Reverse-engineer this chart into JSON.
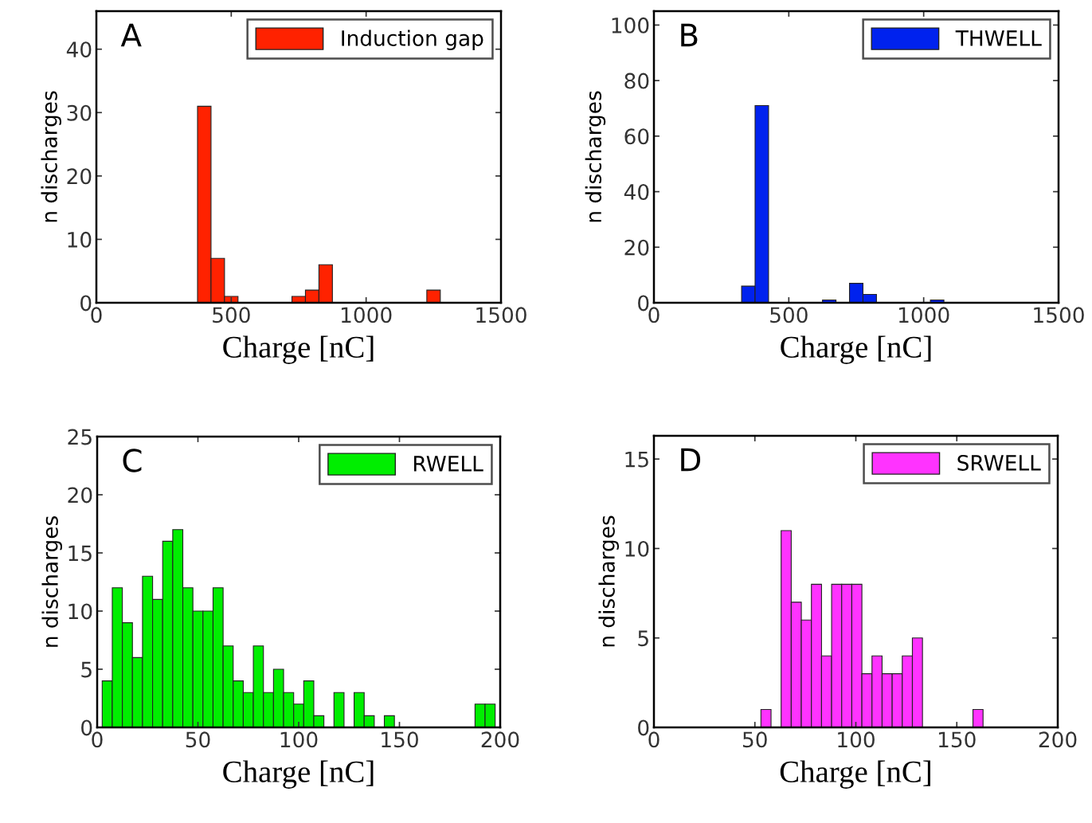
{
  "chart_data": [
    {
      "type": "histogram",
      "xlabel": "Charge [nC]",
      "ylabel": "n discharges",
      "annotations": [
        "A"
      ],
      "legend": "top right",
      "bins": [
        375,
        425,
        475,
        525,
        575,
        625,
        675,
        725,
        775,
        825,
        875,
        925,
        975,
        1025,
        1075,
        1125,
        1175,
        1225,
        1275
      ],
      "series": [
        {
          "name": "Induction gap",
          "color": "#ff2200",
          "values": [
            31,
            7,
            1,
            0,
            0,
            0,
            0,
            1,
            2,
            6,
            0,
            0,
            0,
            0,
            0,
            0,
            0,
            2
          ]
        }
      ],
      "xlim": [
        0,
        1500
      ],
      "xticks": [
        0,
        500,
        1000,
        1500
      ],
      "ylim": [
        0,
        46
      ],
      "yticks": [
        0,
        10,
        20,
        30,
        40
      ],
      "grid": false
    },
    {
      "type": "histogram",
      "xlabel": "Charge [nC]",
      "ylabel": "n discharges",
      "annotations": [
        "B"
      ],
      "legend": "top right",
      "bins": [
        325,
        375,
        425,
        475,
        525,
        575,
        625,
        675,
        725,
        775,
        825,
        875,
        925,
        975,
        1025,
        1075
      ],
      "series": [
        {
          "name": "THWELL",
          "color": "#0022ee",
          "values": [
            6,
            71,
            0,
            0,
            0,
            0,
            1,
            0,
            7,
            3,
            0,
            0,
            0,
            0,
            1
          ]
        }
      ],
      "xlim": [
        0,
        1500
      ],
      "xticks": [
        0,
        500,
        1000,
        1500
      ],
      "ylim": [
        0,
        105
      ],
      "yticks": [
        0,
        20,
        40,
        60,
        80,
        100
      ],
      "grid": false
    },
    {
      "type": "histogram",
      "xlabel": "Charge [nC]",
      "ylabel": "n discharges",
      "annotations": [
        "C"
      ],
      "legend": "top right",
      "bins": [
        2.5,
        7.5,
        12.5,
        17.5,
        22.5,
        27.5,
        32.5,
        37.5,
        42.5,
        47.5,
        52.5,
        57.5,
        62.5,
        67.5,
        72.5,
        77.5,
        82.5,
        87.5,
        92.5,
        97.5,
        102.5,
        107.5,
        112.5,
        117.5,
        122.5,
        127.5,
        132.5,
        137.5,
        142.5,
        147.5,
        152.5,
        157.5,
        162.5,
        167.5,
        172.5,
        177.5,
        182.5,
        187.5,
        192.5,
        197.5
      ],
      "series": [
        {
          "name": "RWELL",
          "color": "#00ee00",
          "values": [
            4,
            12,
            9,
            6,
            13,
            11,
            16,
            17,
            12,
            10,
            10,
            12,
            7,
            4,
            3,
            7,
            3,
            5,
            3,
            2,
            4,
            1,
            0,
            3,
            0,
            3,
            1,
            0,
            1,
            0,
            0,
            0,
            0,
            0,
            0,
            0,
            0,
            2,
            2
          ]
        }
      ],
      "xlim": [
        0,
        200
      ],
      "xticks": [
        0,
        50,
        100,
        150,
        200
      ],
      "ylim": [
        0,
        25
      ],
      "yticks": [
        0,
        5,
        10,
        15,
        20,
        25
      ],
      "grid": false
    },
    {
      "type": "histogram",
      "xlabel": "Charge [nC]",
      "ylabel": "n discharges",
      "annotations": [
        "D"
      ],
      "legend": "top right",
      "bins": [
        53,
        58,
        63,
        68,
        73,
        78,
        83,
        88,
        93,
        98,
        103,
        108,
        113,
        118,
        123,
        128,
        133,
        138,
        143,
        148,
        153,
        158,
        163
      ],
      "series": [
        {
          "name": "SRWELL",
          "color": "#ff33ff",
          "values": [
            1,
            0,
            11,
            7,
            6,
            8,
            4,
            8,
            8,
            8,
            3,
            4,
            3,
            3,
            4,
            5,
            0,
            0,
            0,
            0,
            0,
            1
          ]
        }
      ],
      "xlim": [
        0,
        200
      ],
      "xticks": [
        0,
        50,
        100,
        150,
        200
      ],
      "ylim": [
        0,
        16.3
      ],
      "yticks": [
        0,
        5,
        10,
        15
      ],
      "grid": false
    }
  ]
}
